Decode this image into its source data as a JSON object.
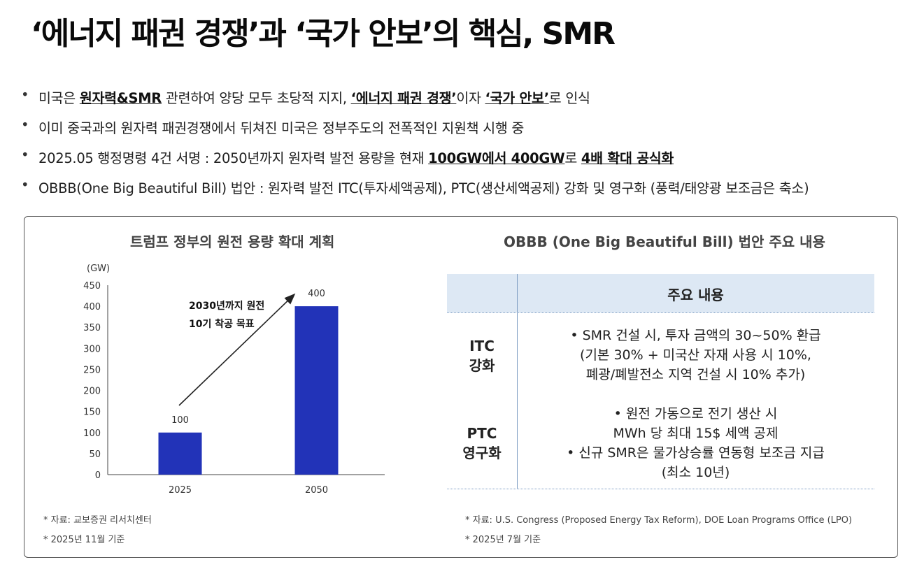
{
  "title": "‘에너지 패권 경쟁’과 ‘국가 안보’의 핵심, SMR",
  "bullets": [
    {
      "a": "미국은 ",
      "b": "원자력&SMR",
      "c": " 관련하여 양당 모두 초당적 지지, ",
      "d": "‘에너지 패권 경쟁’",
      "e": "이자 ",
      "f": "‘국가 안보’",
      "g": "로 인식"
    },
    {
      "a": "이미 중국과의 원자력 패권경쟁에서 뒤쳐진 미국은 정부주도의 전폭적인 지원책 시행 중"
    },
    {
      "a": "2025.05 행정명령 4건 서명 : 2050년까지 원자력 발전 용량을 현재 ",
      "b": "100GW에서 400GW",
      "c": "로 ",
      "d": "4배 확대 공식화"
    },
    {
      "a": "OBBB(One Big Beautiful Bill) 법안 : 원자력 발전 ITC(투자세액공제), PTC(생산세액공제) 강화 및 영구화 (풍력/태양광 보조금은 축소)"
    }
  ],
  "left": {
    "title": "트럼프 정부의 원전 용량 확대 계획",
    "source1": "* 자료: 교보증권 리서치센터",
    "source2": "* 2025년 11월 기준"
  },
  "chart_data": {
    "type": "bar",
    "title": "트럼프 정부의 원전 용량 확대 계획",
    "ylabel": "(GW)",
    "xlabel": "",
    "categories": [
      "2025",
      "2050"
    ],
    "values": [
      100,
      400
    ],
    "ylim": [
      0,
      450
    ],
    "yticks": [
      0,
      50,
      100,
      150,
      200,
      250,
      300,
      350,
      400,
      450
    ],
    "color": "#2233b8",
    "annotation": {
      "line1": "2030년까지 원전",
      "line2": "10기 착공 목표"
    }
  },
  "right": {
    "title": "OBBB (One Big Beautiful Bill) 법안 주요 내용",
    "header": "주요 내용",
    "rows": [
      {
        "head1": "ITC",
        "head2": "강화",
        "lines": [
          "• SMR 건설 시, 투자 금액의 30~50% 환급",
          "(기본 30% + 미국산 자재 사용 시 10%,",
          "폐광/폐발전소 지역 건설 시 10% 추가)"
        ]
      },
      {
        "head1": "PTC",
        "head2": "영구화",
        "lines": [
          "• 원전 가동으로 전기 생산 시",
          "MWh 당 최대 15$ 세액 공제",
          "• 신규 SMR은 물가상승률 연동형 보조금 지급",
          "(최소 10년)"
        ]
      }
    ],
    "source1": "* 자료: U.S. Congress (Proposed Energy Tax Reform), DOE Loan Programs Office (LPO)",
    "source2": "* 2025년 7월 기준"
  },
  "colors": {
    "bar": "#2233b8",
    "table_header": "#dde8f4",
    "table_line": "#7c9bc2"
  }
}
